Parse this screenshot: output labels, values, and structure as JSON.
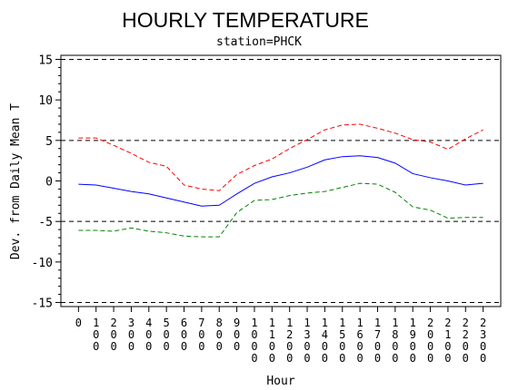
{
  "chart_data": {
    "type": "line",
    "title": "HOURLY TEMPERATURE",
    "subtitle": "station=PHCK",
    "xlabel": "Hour",
    "ylabel": "Dev. from Daily Mean T",
    "x": [
      0,
      100,
      200,
      300,
      400,
      500,
      600,
      700,
      800,
      900,
      1000,
      1100,
      1200,
      1300,
      1400,
      1500,
      1600,
      1700,
      1800,
      1900,
      2000,
      2100,
      2200,
      2300
    ],
    "x_tick_labels": [
      "0",
      "100",
      "200",
      "300",
      "400",
      "500",
      "600",
      "700",
      "800",
      "900",
      "1000",
      "1100",
      "1200",
      "1300",
      "1400",
      "1500",
      "1600",
      "1700",
      "1800",
      "1900",
      "2000",
      "2100",
      "2200",
      "2300"
    ],
    "y_ticks": [
      -15,
      -10,
      -5,
      0,
      5,
      10,
      15
    ],
    "ylim": [
      -15.5,
      15.5
    ],
    "xlim": [
      -100,
      2400
    ],
    "reference_lines": [
      -15,
      -5,
      5,
      15
    ],
    "grid": false,
    "series": [
      {
        "color": "#ff0000",
        "style": "dashed",
        "values": [
          5.3,
          5.3,
          4.4,
          3.4,
          2.3,
          1.8,
          -0.5,
          -1.0,
          -1.2,
          0.8,
          1.9,
          2.7,
          4.0,
          5.1,
          6.3,
          6.9,
          7.0,
          6.5,
          5.9,
          5.1,
          4.8,
          3.9,
          5.2,
          6.3
        ]
      },
      {
        "color": "#0000ff",
        "style": "solid",
        "values": [
          -0.4,
          -0.5,
          -0.9,
          -1.3,
          -1.6,
          -2.1,
          -2.6,
          -3.1,
          -3.0,
          -1.6,
          -0.3,
          0.5,
          1.0,
          1.7,
          2.6,
          3.0,
          3.1,
          2.9,
          2.2,
          0.9,
          0.4,
          0.0,
          -0.5,
          -0.3
        ]
      },
      {
        "color": "#008000",
        "style": "dashed",
        "values": [
          -6.1,
          -6.1,
          -6.2,
          -5.8,
          -6.2,
          -6.4,
          -6.8,
          -6.9,
          -6.9,
          -3.9,
          -2.4,
          -2.3,
          -1.8,
          -1.5,
          -1.3,
          -0.8,
          -0.3,
          -0.4,
          -1.4,
          -3.2,
          -3.6,
          -4.6,
          -4.5,
          -4.5
        ]
      }
    ]
  }
}
